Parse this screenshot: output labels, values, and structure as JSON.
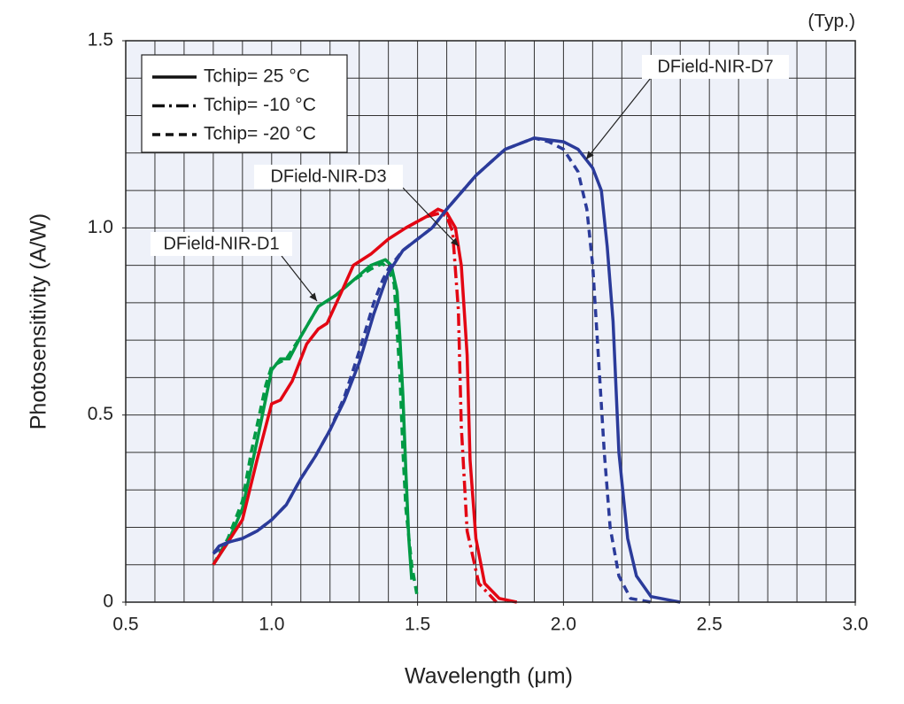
{
  "chart_data": {
    "type": "line",
    "note": "(Typ.)",
    "xlabel": "Wavelength (μm)",
    "ylabel": "Photosensitivity (A/W)",
    "xlim": [
      0.5,
      3.0
    ],
    "ylim": [
      0,
      1.5
    ],
    "xticks": [
      0.5,
      {
        "value": 1,
        "label": "1.0"
      },
      1.5,
      {
        "value": 2,
        "label": "2.0"
      },
      2.5,
      {
        "value": 3,
        "label": "3.0"
      }
    ],
    "yticks": [
      0,
      0.5,
      {
        "value": 1,
        "label": "1.0"
      },
      1.5
    ],
    "xminor": 0.1,
    "yminor": 0.1,
    "grid": true,
    "legend_position": "upper left",
    "legend": [
      {
        "label": "Tchip= 25 °C",
        "dash": "solid"
      },
      {
        "label": "Tchip= -10 °C",
        "dash": "dashdot"
      },
      {
        "label": "Tchip= -20 °C",
        "dash": "dash"
      }
    ],
    "annotations": [
      "DField-NIR-D1",
      "DField-NIR-D3",
      "DField-NIR-D7"
    ],
    "series": [
      {
        "color": "#009a44",
        "dash": "solid",
        "x": [
          0.8,
          0.85,
          0.9,
          0.95,
          1.0,
          1.03,
          1.06,
          1.1,
          1.16,
          1.22,
          1.28,
          1.34,
          1.39,
          1.41,
          1.43,
          1.44,
          1.45,
          1.46,
          1.47,
          1.48
        ],
        "values": [
          0.1,
          0.16,
          0.25,
          0.43,
          0.62,
          0.65,
          0.65,
          0.71,
          0.79,
          0.82,
          0.86,
          0.9,
          0.915,
          0.9,
          0.83,
          0.7,
          0.55,
          0.35,
          0.17,
          0.06
        ]
      },
      {
        "color": "#009a44",
        "dash": "dash",
        "x": [
          0.8,
          0.85,
          0.9,
          0.93,
          0.98,
          1.0,
          1.05,
          1.1,
          1.16,
          1.22,
          1.28,
          1.34,
          1.38,
          1.4,
          1.42,
          1.44,
          1.45,
          1.46,
          1.48,
          1.5
        ],
        "values": [
          0.1,
          0.17,
          0.27,
          0.4,
          0.58,
          0.63,
          0.65,
          0.71,
          0.79,
          0.82,
          0.86,
          0.89,
          0.905,
          0.89,
          0.85,
          0.6,
          0.4,
          0.25,
          0.1,
          0.01
        ]
      },
      {
        "color": "#e30613",
        "dash": "solid",
        "x": [
          0.8,
          0.9,
          0.95,
          1.0,
          1.03,
          1.07,
          1.12,
          1.16,
          1.19,
          1.24,
          1.28,
          1.34,
          1.4,
          1.46,
          1.53,
          1.57,
          1.6,
          1.63,
          1.65,
          1.67,
          1.68,
          1.7,
          1.73,
          1.78,
          1.84
        ],
        "values": [
          0.1,
          0.22,
          0.38,
          0.53,
          0.54,
          0.59,
          0.69,
          0.73,
          0.745,
          0.83,
          0.9,
          0.93,
          0.97,
          1.0,
          1.03,
          1.05,
          1.04,
          1.0,
          0.9,
          0.66,
          0.38,
          0.17,
          0.05,
          0.01,
          0.0
        ]
      },
      {
        "color": "#e30613",
        "dash": "dashdot",
        "x": [
          1.46,
          1.53,
          1.58,
          1.6,
          1.62,
          1.64,
          1.65,
          1.67,
          1.71,
          1.77
        ],
        "values": [
          1.0,
          1.03,
          1.04,
          1.03,
          0.99,
          0.78,
          0.47,
          0.19,
          0.05,
          0.0
        ]
      },
      {
        "color": "#2b3b9a",
        "dash": "solid",
        "x": [
          0.8,
          0.82,
          0.85,
          0.9,
          0.95,
          1.0,
          1.05,
          1.1,
          1.15,
          1.2,
          1.25,
          1.3,
          1.35,
          1.4,
          1.45,
          1.5,
          1.55,
          1.6,
          1.7,
          1.8,
          1.9,
          2.0,
          2.05,
          2.1,
          2.13,
          2.15,
          2.17,
          2.19,
          2.22,
          2.25,
          2.3,
          2.4
        ],
        "values": [
          0.13,
          0.15,
          0.16,
          0.17,
          0.19,
          0.22,
          0.26,
          0.33,
          0.39,
          0.46,
          0.54,
          0.64,
          0.77,
          0.88,
          0.94,
          0.97,
          1.0,
          1.05,
          1.14,
          1.21,
          1.24,
          1.23,
          1.21,
          1.16,
          1.1,
          0.95,
          0.75,
          0.4,
          0.17,
          0.07,
          0.015,
          0.0
        ]
      },
      {
        "color": "#2b3b9a",
        "dash": "dash",
        "x": [
          0.8,
          0.85,
          0.9,
          0.95,
          1.0,
          1.05,
          1.1,
          1.15,
          1.2,
          1.25,
          1.3,
          1.35,
          1.38,
          1.4,
          1.45,
          1.5,
          1.55,
          1.6,
          1.7,
          1.8,
          1.9,
          1.95,
          2.0,
          2.05,
          2.08,
          2.1,
          2.12,
          2.14,
          2.16,
          2.19,
          2.23,
          2.3
        ],
        "values": [
          0.13,
          0.16,
          0.17,
          0.19,
          0.22,
          0.26,
          0.33,
          0.39,
          0.46,
          0.55,
          0.67,
          0.8,
          0.86,
          0.89,
          0.94,
          0.97,
          1.0,
          1.05,
          1.14,
          1.21,
          1.24,
          1.23,
          1.21,
          1.15,
          1.05,
          0.9,
          0.65,
          0.4,
          0.2,
          0.07,
          0.01,
          0.0
        ]
      }
    ]
  }
}
